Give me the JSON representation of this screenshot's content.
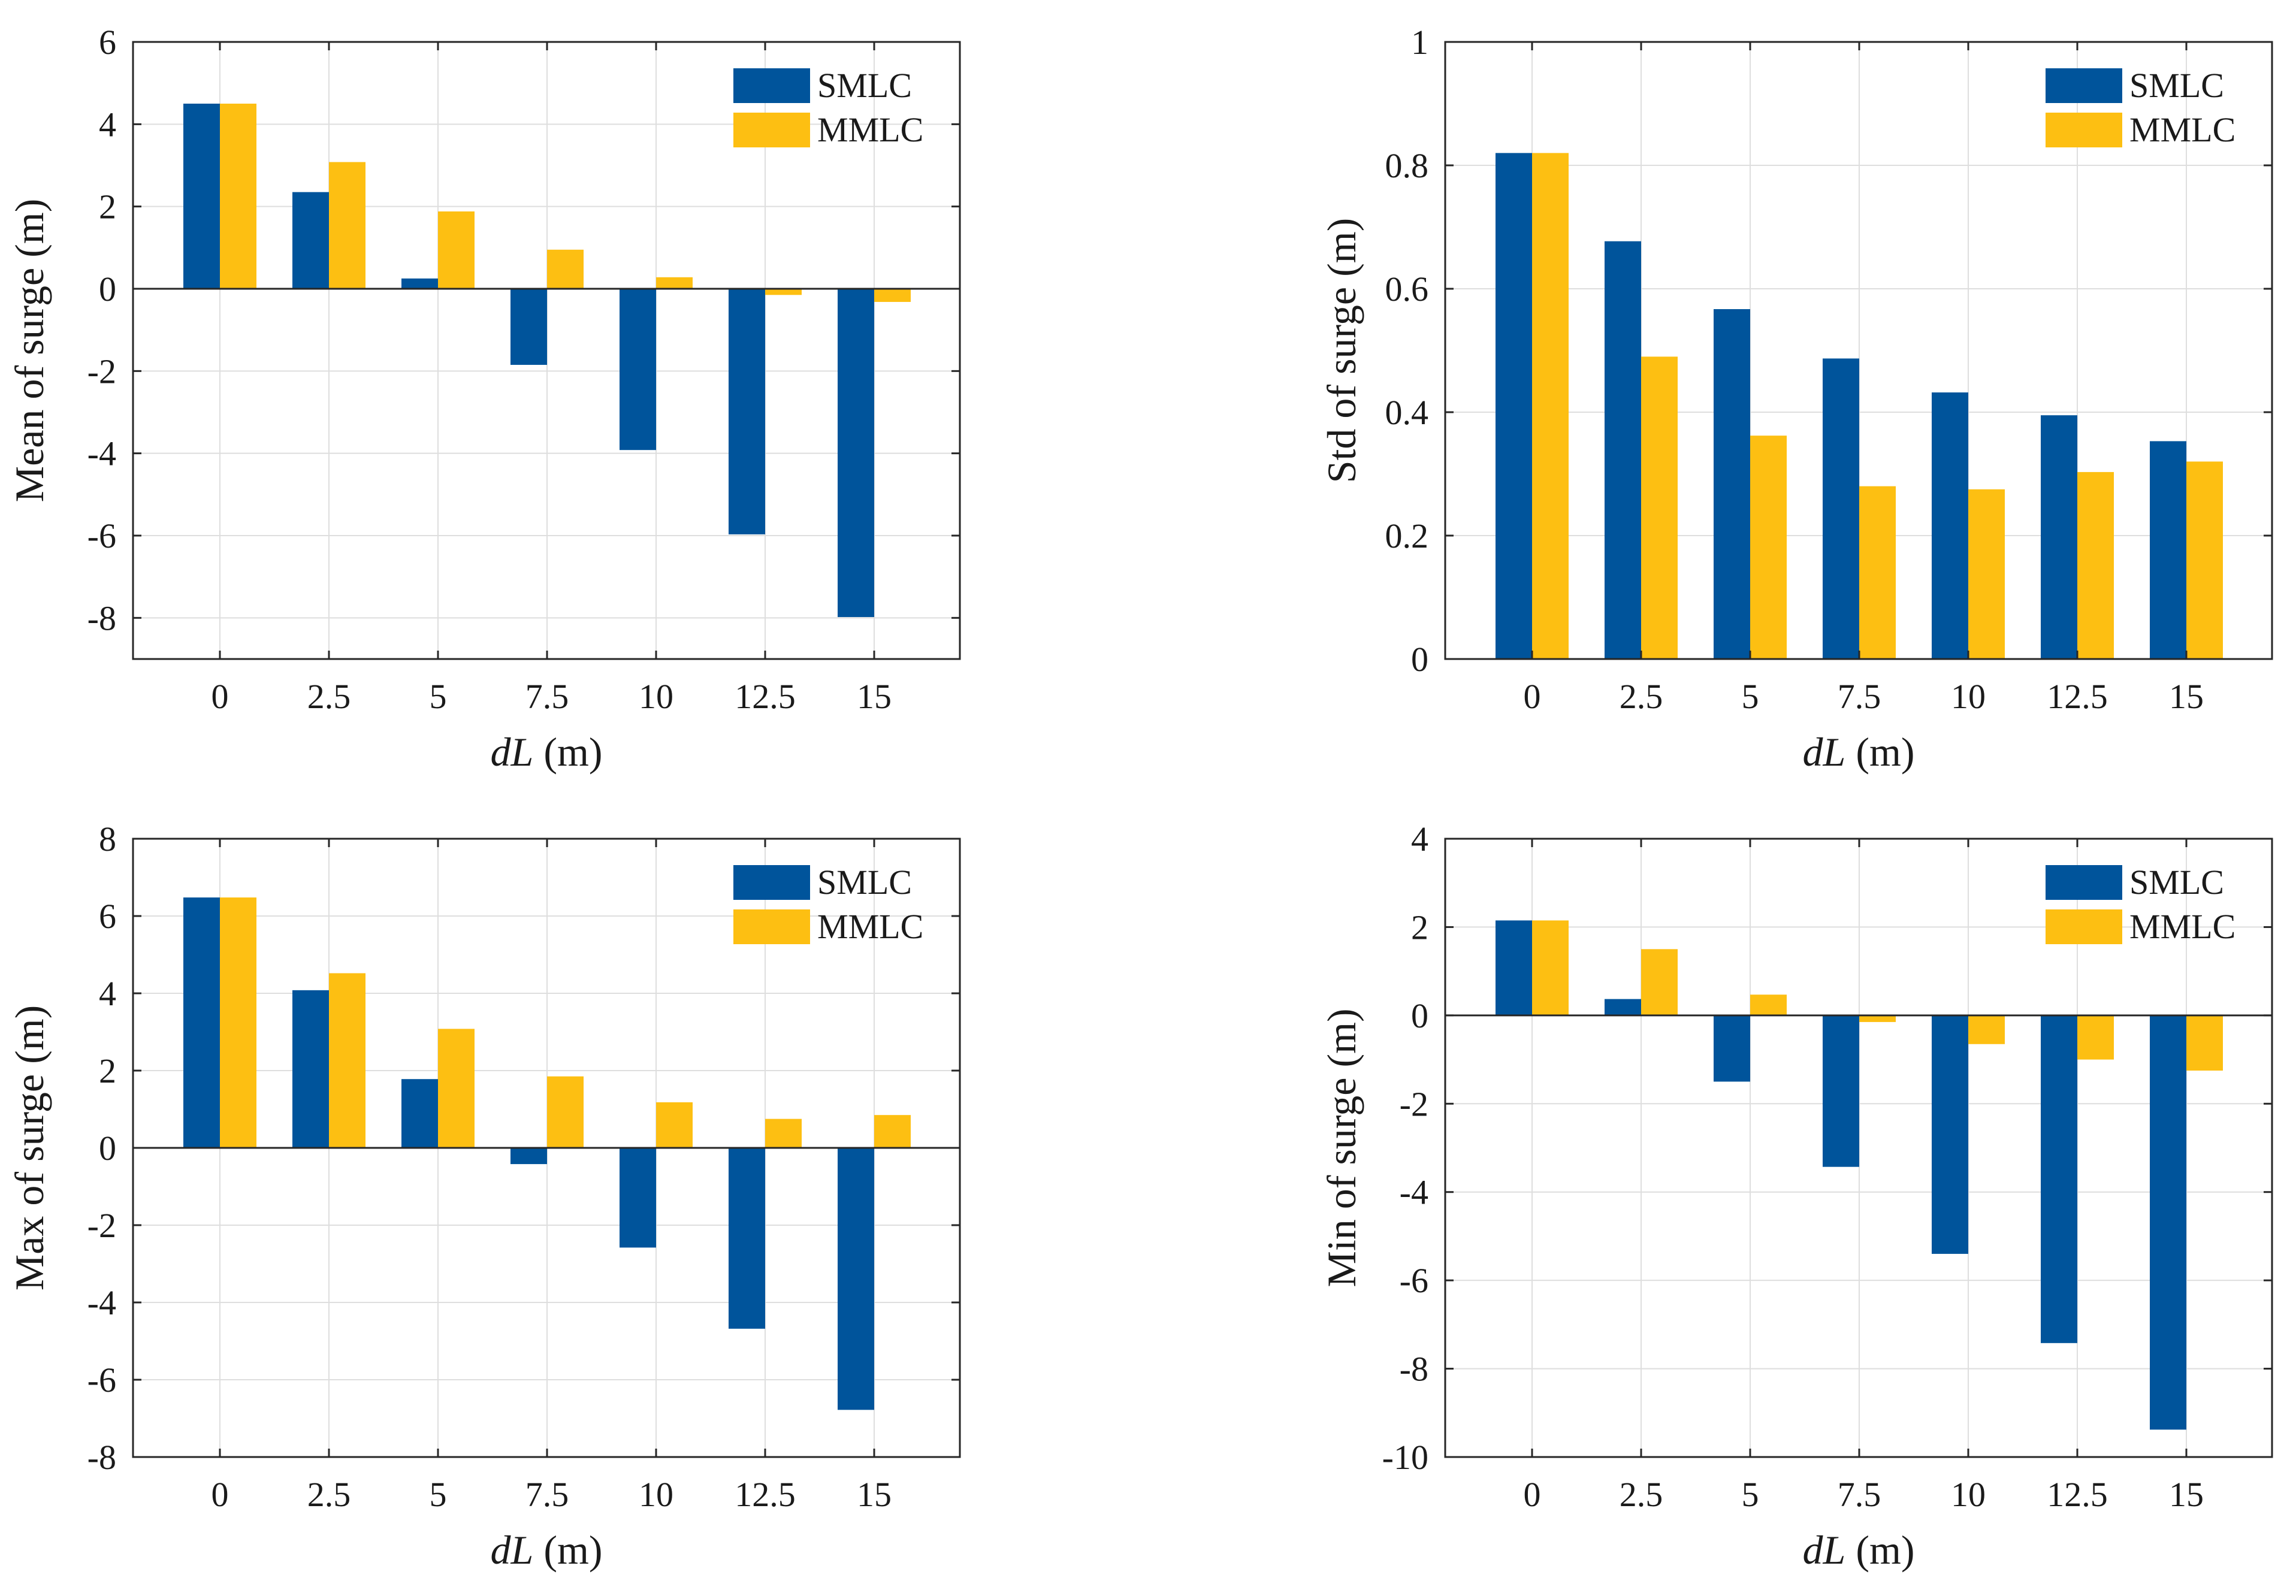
{
  "colors": {
    "SMLC": "#00549b",
    "MMLC": "#fdbf12",
    "grid": "#dedede",
    "axis": "#262626",
    "zero_line": "#262626"
  },
  "chart_data": [
    {
      "type": "bar",
      "categories": [
        "0",
        "2.5",
        "5",
        "7.5",
        "10",
        "12.5",
        "15"
      ],
      "series": [
        {
          "name": "SMLC",
          "values": [
            4.5,
            2.35,
            0.25,
            -1.85,
            -3.92,
            -5.97,
            -7.98
          ]
        },
        {
          "name": "MMLC",
          "values": [
            4.5,
            3.08,
            1.88,
            0.95,
            0.28,
            -0.15,
            -0.32
          ]
        }
      ],
      "xlabel_italic": "dL",
      "xlabel_unit": " (m)",
      "ylabel": "Mean of surge (m)",
      "ylim": [
        -9,
        6
      ],
      "yticks": [
        6,
        4,
        2,
        0,
        -2,
        -4,
        -6,
        -8
      ],
      "ytick_labels": [
        "6",
        "4",
        "2",
        "0",
        "-2",
        "-4",
        "-6",
        "-8"
      ],
      "grid": true,
      "legend": {
        "position": "top-right",
        "entries": [
          "SMLC",
          "MMLC"
        ]
      }
    },
    {
      "type": "bar",
      "categories": [
        "0",
        "2.5",
        "5",
        "7.5",
        "10",
        "12.5",
        "15"
      ],
      "series": [
        {
          "name": "SMLC",
          "values": [
            0.82,
            0.677,
            0.567,
            0.487,
            0.432,
            0.395,
            0.353
          ]
        },
        {
          "name": "MMLC",
          "values": [
            0.82,
            0.49,
            0.362,
            0.28,
            0.275,
            0.303,
            0.32
          ]
        }
      ],
      "xlabel_italic": "dL",
      "xlabel_unit": " (m)",
      "ylabel": "Std of surge (m)",
      "ylim": [
        0,
        1
      ],
      "yticks": [
        1,
        0.8,
        0.6,
        0.4,
        0.2,
        0
      ],
      "ytick_labels": [
        "1",
        "0.8",
        "0.6",
        "0.4",
        "0.2",
        "0"
      ],
      "grid": true,
      "legend": {
        "position": "top-right",
        "entries": [
          "SMLC",
          "MMLC"
        ]
      }
    },
    {
      "type": "bar",
      "categories": [
        "0",
        "2.5",
        "5",
        "7.5",
        "10",
        "12.5",
        "15"
      ],
      "series": [
        {
          "name": "SMLC",
          "values": [
            6.48,
            4.08,
            1.78,
            -0.42,
            -2.58,
            -4.68,
            -6.78
          ]
        },
        {
          "name": "MMLC",
          "values": [
            6.48,
            4.52,
            3.08,
            1.85,
            1.18,
            0.75,
            0.85
          ]
        }
      ],
      "xlabel_italic": "dL",
      "xlabel_unit": " (m)",
      "ylabel": "Max of surge (m)",
      "ylim": [
        -8,
        8
      ],
      "yticks": [
        8,
        6,
        4,
        2,
        0,
        -2,
        -4,
        -6,
        -8
      ],
      "ytick_labels": [
        "8",
        "6",
        "4",
        "2",
        "0",
        "-2",
        "-4",
        "-6",
        "-8"
      ],
      "grid": true,
      "legend": {
        "position": "top-right",
        "entries": [
          "SMLC",
          "MMLC"
        ]
      }
    },
    {
      "type": "bar",
      "categories": [
        "0",
        "2.5",
        "5",
        "7.5",
        "10",
        "12.5",
        "15"
      ],
      "series": [
        {
          "name": "SMLC",
          "values": [
            2.15,
            0.37,
            -1.5,
            -3.43,
            -5.4,
            -7.42,
            -9.38
          ]
        },
        {
          "name": "MMLC",
          "values": [
            2.15,
            1.5,
            0.47,
            -0.15,
            -0.65,
            -1.0,
            -1.25
          ]
        }
      ],
      "xlabel_italic": "dL",
      "xlabel_unit": " (m)",
      "ylabel": "Min of surge (m)",
      "ylim": [
        -10,
        4
      ],
      "yticks": [
        4,
        2,
        0,
        -2,
        -4,
        -6,
        -8,
        -10
      ],
      "ytick_labels": [
        "4",
        "2",
        "0",
        "-2",
        "-4",
        "-6",
        "-8",
        "-10"
      ],
      "grid": true,
      "legend": {
        "position": "top-right",
        "entries": [
          "SMLC",
          "MMLC"
        ]
      }
    }
  ]
}
